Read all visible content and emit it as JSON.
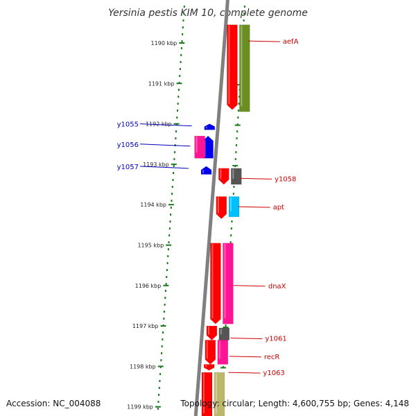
{
  "title": "Yersinia pestis KIM 10, complete genome",
  "footer": {
    "accession": "Accession: NC_004088",
    "topology": "Topology: circular; Length: 4,600,755 bp; Genes: 4,148"
  },
  "colors": {
    "ruler": "#1a7a1a",
    "backbone": "#808080",
    "forward_label": "#cc0000",
    "reverse_label": "#0000bb",
    "gene_red": "#ff0000",
    "gene_olive": "#6b8e23",
    "gene_pink": "#ff1493",
    "gene_blue": "#0000ee",
    "gene_gray": "#555555",
    "gene_cyan": "#00bfff",
    "gene_khaki": "#bdb76b"
  },
  "ruler_ticks": [
    {
      "kbp": 1190,
      "label": "1190 kbp"
    },
    {
      "kbp": 1191,
      "label": "1191 kbp"
    },
    {
      "kbp": 1192,
      "label": "1192 kbp"
    },
    {
      "kbp": 1193,
      "label": "1193 kbp"
    },
    {
      "kbp": 1194,
      "label": "1194 kbp"
    },
    {
      "kbp": 1195,
      "label": "1195 kbp"
    },
    {
      "kbp": 1196,
      "label": "1196 kbp"
    },
    {
      "kbp": 1197,
      "label": "1197 kbp"
    },
    {
      "kbp": 1198,
      "label": "1198 kbp"
    },
    {
      "kbp": 1199,
      "label": "1199 kbp"
    }
  ],
  "features": [
    {
      "lane": 1,
      "start_kbp": 1189.55,
      "end_kbp": 1191.65,
      "strand": 1,
      "color": "gene_red"
    },
    {
      "lane": 2,
      "start_kbp": 1189.55,
      "end_kbp": 1191.7,
      "strand": 0,
      "color": "gene_olive"
    },
    {
      "lane": -1,
      "start_kbp": 1192.0,
      "end_kbp": 1192.15,
      "strand": -1,
      "color": "gene_blue"
    },
    {
      "lane": -1,
      "start_kbp": 1192.3,
      "end_kbp": 1192.85,
      "strand": -1,
      "color": "gene_blue"
    },
    {
      "lane": -2,
      "start_kbp": 1192.3,
      "end_kbp": 1192.85,
      "strand": 0,
      "color": "gene_pink"
    },
    {
      "lane": -1,
      "start_kbp": 1193.05,
      "end_kbp": 1193.25,
      "strand": -1,
      "color": "gene_blue"
    },
    {
      "lane": 1,
      "start_kbp": 1193.1,
      "end_kbp": 1193.5,
      "strand": 1,
      "color": "gene_red"
    },
    {
      "lane": 2,
      "start_kbp": 1193.1,
      "end_kbp": 1193.5,
      "strand": 0,
      "color": "gene_gray"
    },
    {
      "lane": 1,
      "start_kbp": 1193.8,
      "end_kbp": 1194.35,
      "strand": 1,
      "color": "gene_red"
    },
    {
      "lane": 2,
      "start_kbp": 1193.8,
      "end_kbp": 1194.3,
      "strand": 0,
      "color": "gene_cyan"
    },
    {
      "lane": 1,
      "start_kbp": 1194.95,
      "end_kbp": 1196.95,
      "strand": 1,
      "color": "gene_red"
    },
    {
      "lane": 2,
      "start_kbp": 1194.95,
      "end_kbp": 1196.95,
      "strand": 0,
      "color": "gene_pink"
    },
    {
      "lane": 1,
      "start_kbp": 1197.0,
      "end_kbp": 1197.35,
      "strand": 1,
      "color": "gene_red"
    },
    {
      "lane": 2,
      "start_kbp": 1197.05,
      "end_kbp": 1197.35,
      "strand": 0,
      "color": "gene_gray"
    },
    {
      "lane": 1,
      "start_kbp": 1197.35,
      "end_kbp": 1197.95,
      "strand": 1,
      "color": "gene_red"
    },
    {
      "lane": 2,
      "start_kbp": 1197.35,
      "end_kbp": 1197.95,
      "strand": 0,
      "color": "gene_pink"
    },
    {
      "lane": 1,
      "start_kbp": 1197.95,
      "end_kbp": 1198.1,
      "strand": 1,
      "color": "gene_red"
    },
    {
      "lane": 1,
      "start_kbp": 1198.15,
      "end_kbp": 1199.3,
      "strand": 0,
      "color": "gene_red"
    },
    {
      "lane": 2,
      "start_kbp": 1198.15,
      "end_kbp": 1199.3,
      "strand": 0,
      "color": "gene_khaki"
    }
  ],
  "labels": [
    {
      "text": "aefA",
      "side": "forward",
      "kbp": 1189.95
    },
    {
      "text": "y1058",
      "side": "forward",
      "kbp": 1193.35
    },
    {
      "text": "apt",
      "side": "forward",
      "kbp": 1194.05
    },
    {
      "text": "dnaX",
      "side": "forward",
      "kbp": 1196.0
    },
    {
      "text": "y1061",
      "side": "forward",
      "kbp": 1197.3
    },
    {
      "text": "recR",
      "side": "forward",
      "kbp": 1197.75
    },
    {
      "text": "y1063",
      "side": "forward",
      "kbp": 1198.15
    },
    {
      "text": "y1055",
      "side": "reverse",
      "kbp": 1192.0
    },
    {
      "text": "y1056",
      "side": "reverse",
      "kbp": 1192.5
    },
    {
      "text": "y1057",
      "side": "reverse",
      "kbp": 1193.05
    }
  ]
}
